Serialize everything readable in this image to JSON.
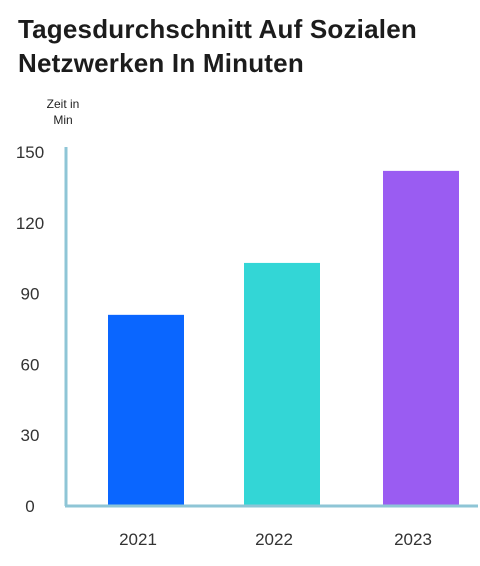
{
  "chart_data": {
    "type": "bar",
    "title": "Tagesdurchschnitt Auf Sozialen Netzwerken In Minuten",
    "ylabel": "Zeit in Min",
    "xlabel": "",
    "categories": [
      "2021",
      "2022",
      "2023"
    ],
    "values": [
      81,
      103,
      142
    ],
    "colors": [
      "#0a66ff",
      "#33d6d6",
      "#9a5cf2"
    ],
    "ylim": [
      0,
      150
    ],
    "yticks": [
      0,
      30,
      60,
      90,
      120,
      150
    ],
    "axis_color": "#8ec5d6",
    "grid": false,
    "legend": "none"
  }
}
